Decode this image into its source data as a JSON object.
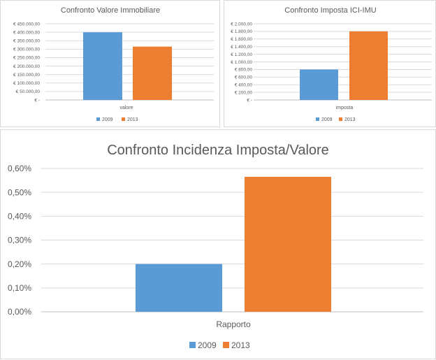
{
  "chart_data": [
    {
      "type": "bar",
      "title": "Confronto Valore Immobiliare",
      "categories": [
        "valore"
      ],
      "series": [
        {
          "name": "2009",
          "values": [
            400000
          ],
          "color": "#5b9bd5"
        },
        {
          "name": "2013",
          "values": [
            315000
          ],
          "color": "#ed7d31"
        }
      ],
      "ylim": [
        0,
        450000
      ],
      "yticks": [
        0,
        50000,
        100000,
        150000,
        200000,
        250000,
        300000,
        350000,
        400000,
        450000
      ],
      "ytick_labels": [
        "€ -",
        "€ 50.000,00",
        "€ 100.000,00",
        "€ 150.000,00",
        "€ 200.000,00",
        "€ 250.000,00",
        "€ 300.000,00",
        "€ 350.000,00",
        "€ 400.000,00",
        "€ 450.000,00"
      ],
      "grid": true,
      "legend": "bottom"
    },
    {
      "type": "bar",
      "title": "Confronto Imposta ICI-IMU",
      "categories": [
        "imposta"
      ],
      "series": [
        {
          "name": "2009",
          "values": [
            800
          ],
          "color": "#5b9bd5"
        },
        {
          "name": "2013",
          "values": [
            1800
          ],
          "color": "#ed7d31"
        }
      ],
      "ylim": [
        0,
        2000
      ],
      "yticks": [
        0,
        200,
        400,
        600,
        800,
        1000,
        1200,
        1400,
        1600,
        1800,
        2000
      ],
      "ytick_labels": [
        "€ -",
        "€ 200,00",
        "€ 400,00",
        "€ 600,00",
        "€ 800,00",
        "€ 1.000,00",
        "€ 1.200,00",
        "€ 1.400,00",
        "€ 1.600,00",
        "€ 1.800,00",
        "€ 2.000,00"
      ],
      "grid": true,
      "legend": "bottom"
    },
    {
      "type": "bar",
      "title": "Confronto Incidenza Imposta/Valore",
      "categories": [
        "Rapporto"
      ],
      "series": [
        {
          "name": "2009",
          "values": [
            0.2
          ],
          "color": "#5b9bd5"
        },
        {
          "name": "2013",
          "values": [
            0.565
          ],
          "color": "#ed7d31"
        }
      ],
      "ylim": [
        0,
        0.6
      ],
      "yticks": [
        0,
        0.1,
        0.2,
        0.3,
        0.4,
        0.5,
        0.6
      ],
      "ytick_labels": [
        "0,00%",
        "0,10%",
        "0,20%",
        "0,30%",
        "0,40%",
        "0,50%",
        "0,60%"
      ],
      "grid": true,
      "legend": "bottom"
    }
  ]
}
